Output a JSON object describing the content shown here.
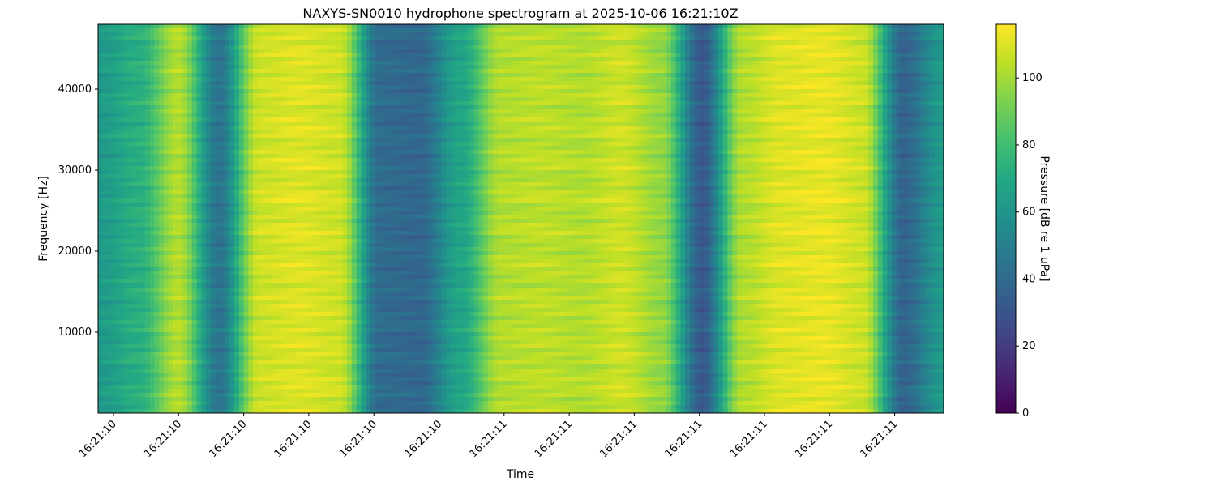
{
  "chart_data": {
    "type": "heatmap",
    "title": "NAXYS-SN0010 hydrophone spectrogram at 2025-10-06 16:21:10Z",
    "xlabel": "Time",
    "ylabel": "Frequency [Hz]",
    "colorbar_label": "Pressure [dB re 1 uPa]",
    "colormap": "viridis",
    "clim": [
      0,
      116
    ],
    "ylim": [
      0,
      48000
    ],
    "y_ticks": [
      10000,
      20000,
      30000,
      40000
    ],
    "colorbar_ticks": [
      0,
      20,
      40,
      60,
      80,
      100
    ],
    "x_ticks": [
      "16:21:10",
      "16:21:10",
      "16:21:10",
      "16:21:10",
      "16:21:10",
      "16:21:10",
      "16:21:11",
      "16:21:11",
      "16:21:11",
      "16:21:11",
      "16:21:11",
      "16:21:11",
      "16:21:11"
    ],
    "grid": false,
    "time_columns_level_db": [
      60,
      70,
      100,
      42,
      105,
      108,
      105,
      38,
      36,
      65,
      100,
      102,
      100,
      105,
      95,
      30,
      100,
      108,
      110,
      105,
      35,
      60
    ],
    "frequency_band_modulation_db": [
      0,
      4,
      2,
      5,
      0,
      3,
      1,
      4
    ]
  }
}
